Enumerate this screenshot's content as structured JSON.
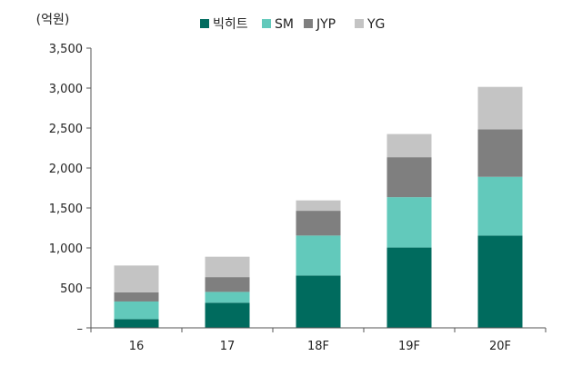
{
  "chart_data": {
    "type": "bar",
    "stacked": true,
    "unit_label": "(억원)",
    "title": "",
    "xlabel": "",
    "ylabel": "",
    "categories": [
      "16",
      "17",
      "18F",
      "19F",
      "20F"
    ],
    "series": [
      {
        "name": "빅히트",
        "color": "#006b5e",
        "values": [
          110,
          315,
          655,
          1005,
          1155
        ]
      },
      {
        "name": "SM",
        "color": "#62c9bb",
        "values": [
          220,
          135,
          500,
          630,
          735
        ]
      },
      {
        "name": "JYP",
        "color": "#7f7f7f",
        "values": [
          115,
          185,
          310,
          500,
          595
        ]
      },
      {
        "name": "YG",
        "color": "#c4c4c4",
        "values": [
          335,
          255,
          130,
          290,
          530
        ]
      }
    ],
    "ylim": [
      0,
      3500
    ],
    "yticks": [
      0,
      500,
      1000,
      1500,
      2000,
      2500,
      3000,
      3500
    ],
    "ytick_labels": [
      "–",
      "500",
      "1,000",
      "1,500",
      "2,000",
      "2,500",
      "3,000",
      "3,500"
    ],
    "legend_position": "top-center",
    "grid": false
  }
}
